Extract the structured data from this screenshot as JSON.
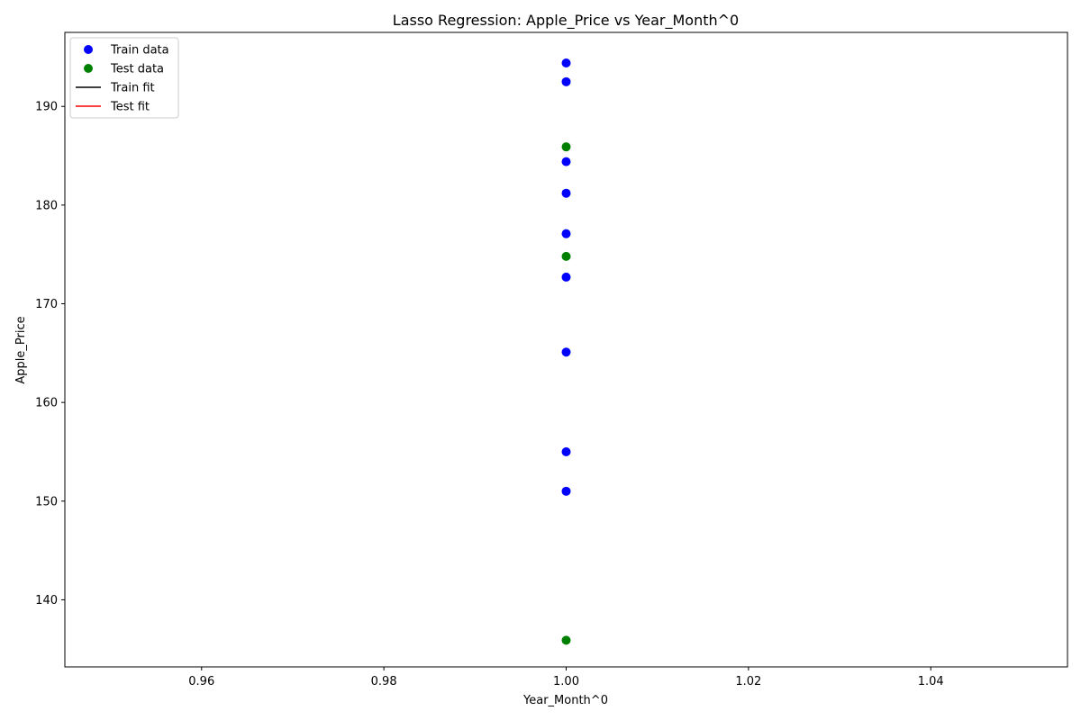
{
  "chart_data": {
    "type": "scatter",
    "title": "Lasso Regression: Apple_Price vs Year_Month^0",
    "xlabel": "Year_Month^0",
    "ylabel": "Apple_Price",
    "xlim": [
      0.945,
      1.055
    ],
    "ylim": [
      133.2,
      197.5
    ],
    "xticks": [
      0.96,
      0.98,
      1.0,
      1.02,
      1.04
    ],
    "xtick_labels": [
      "0.96",
      "0.98",
      "1.00",
      "1.02",
      "1.04"
    ],
    "yticks": [
      140,
      150,
      160,
      170,
      180,
      190
    ],
    "ytick_labels": [
      "140",
      "150",
      "160",
      "170",
      "180",
      "190"
    ],
    "grid": false,
    "legend_position": "top-left",
    "series": [
      {
        "name": "Train data",
        "kind": "scatter",
        "color": "#0000ff",
        "points": [
          {
            "x": 1.0,
            "y": 194.4
          },
          {
            "x": 1.0,
            "y": 192.5
          },
          {
            "x": 1.0,
            "y": 184.4
          },
          {
            "x": 1.0,
            "y": 181.2
          },
          {
            "x": 1.0,
            "y": 177.1
          },
          {
            "x": 1.0,
            "y": 172.7
          },
          {
            "x": 1.0,
            "y": 165.1
          },
          {
            "x": 1.0,
            "y": 155.0
          },
          {
            "x": 1.0,
            "y": 151.0
          }
        ]
      },
      {
        "name": "Test data",
        "kind": "scatter",
        "color": "#008000",
        "points": [
          {
            "x": 1.0,
            "y": 185.9
          },
          {
            "x": 1.0,
            "y": 174.8
          },
          {
            "x": 1.0,
            "y": 135.9
          }
        ]
      },
      {
        "name": "Train fit",
        "kind": "line",
        "color": "#000000",
        "points": []
      },
      {
        "name": "Test fit",
        "kind": "line",
        "color": "#ff0000",
        "points": []
      }
    ]
  }
}
